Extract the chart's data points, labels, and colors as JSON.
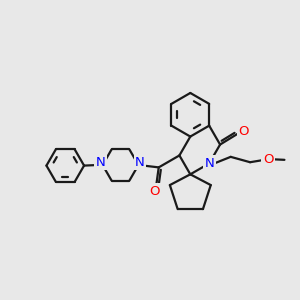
{
  "background_color": "#e8e8e8",
  "bond_color": "#1a1a1a",
  "n_color": "#0000ff",
  "o_color": "#ff0000",
  "line_width": 1.6,
  "font_size_atom": 8.5,
  "fig_width": 3.0,
  "fig_height": 3.0,
  "dpi": 100,
  "xlim": [
    0,
    10
  ],
  "ylim": [
    0,
    10
  ]
}
